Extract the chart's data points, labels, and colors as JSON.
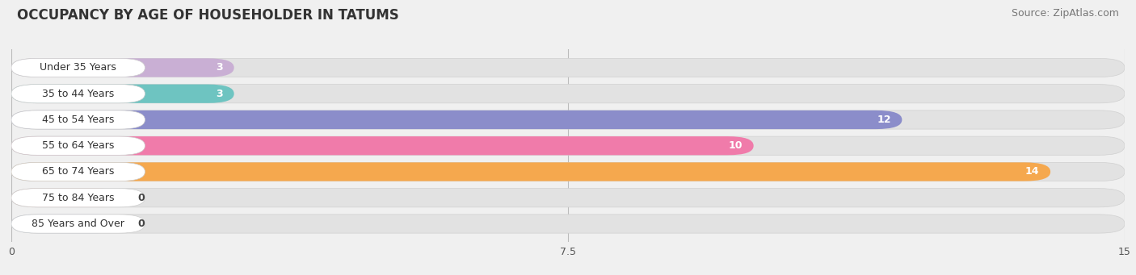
{
  "title": "OCCUPANCY BY AGE OF HOUSEHOLDER IN TATUMS",
  "source": "Source: ZipAtlas.com",
  "categories": [
    "Under 35 Years",
    "35 to 44 Years",
    "45 to 54 Years",
    "55 to 64 Years",
    "65 to 74 Years",
    "75 to 84 Years",
    "85 Years and Over"
  ],
  "values": [
    3,
    3,
    12,
    10,
    14,
    0,
    0
  ],
  "bar_colors": [
    "#c9afd4",
    "#6ec4c1",
    "#8b8dca",
    "#f07baa",
    "#f5a84e",
    "#f0a899",
    "#a8c8f0"
  ],
  "xlim_max": 15,
  "xticks": [
    0,
    7.5,
    15
  ],
  "background_color": "#f0f0f0",
  "bar_bg_color": "#e2e2e2",
  "label_bg_color": "#ffffff",
  "title_fontsize": 12,
  "source_fontsize": 9,
  "label_fontsize": 9,
  "value_fontsize": 9
}
